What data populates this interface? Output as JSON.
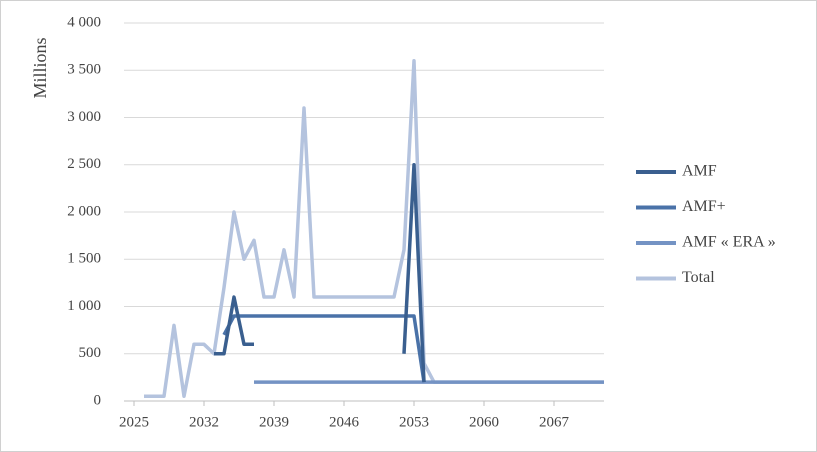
{
  "chart_data": {
    "type": "line",
    "y_label": "Millions",
    "x": [
      2026,
      2027,
      2028,
      2029,
      2030,
      2031,
      2032,
      2033,
      2034,
      2035,
      2036,
      2037,
      2038,
      2039,
      2040,
      2041,
      2042,
      2043,
      2044,
      2045,
      2046,
      2047,
      2048,
      2049,
      2050,
      2051,
      2052,
      2053,
      2054,
      2055,
      2056,
      2057,
      2058,
      2059,
      2060,
      2061,
      2062,
      2063,
      2064,
      2065,
      2066,
      2067,
      2068,
      2069,
      2070,
      2071,
      2072
    ],
    "series": [
      {
        "name": "Total",
        "color": "#b4c3de",
        "values": [
          50,
          50,
          50,
          800,
          50,
          600,
          600,
          500,
          1200,
          2000,
          1500,
          1700,
          1100,
          1100,
          1600,
          1100,
          3100,
          1100,
          1100,
          1100,
          1100,
          1100,
          1100,
          1100,
          1100,
          1100,
          1600,
          3600,
          400,
          200,
          200,
          200,
          200,
          200,
          200,
          200,
          200,
          200,
          200,
          200,
          200,
          200,
          200,
          200,
          200,
          200,
          200
        ]
      },
      {
        "name": "AMF « ERA »",
        "color": "#7493c4",
        "values": [
          null,
          null,
          null,
          null,
          null,
          null,
          null,
          null,
          null,
          null,
          null,
          200,
          200,
          200,
          200,
          200,
          200,
          200,
          200,
          200,
          200,
          200,
          200,
          200,
          200,
          200,
          200,
          200,
          200,
          200,
          200,
          200,
          200,
          200,
          200,
          200,
          200,
          200,
          200,
          200,
          200,
          200,
          200,
          200,
          200,
          200,
          200
        ]
      },
      {
        "name": "AMF+",
        "color": "#4a72a8",
        "values": [
          null,
          null,
          null,
          null,
          null,
          null,
          null,
          null,
          700,
          900,
          900,
          900,
          900,
          900,
          900,
          900,
          900,
          900,
          900,
          900,
          900,
          900,
          900,
          900,
          900,
          900,
          900,
          900,
          200,
          null,
          null,
          null,
          null,
          null,
          null,
          null,
          null,
          null,
          null,
          null,
          null,
          null,
          null,
          null,
          null,
          null,
          null
        ]
      },
      {
        "name": "AMF",
        "color": "#3a5f8f",
        "values": [
          null,
          null,
          null,
          null,
          null,
          null,
          null,
          500,
          500,
          1100,
          600,
          600,
          null,
          null,
          null,
          null,
          null,
          null,
          null,
          null,
          null,
          null,
          null,
          null,
          null,
          null,
          500,
          2500,
          200,
          null,
          null,
          null,
          null,
          null,
          null,
          null,
          null,
          null,
          null,
          null,
          null,
          null,
          null,
          null,
          null,
          null,
          null
        ]
      }
    ],
    "legend_order": [
      3,
      2,
      1,
      0
    ],
    "xlim": [
      2024,
      2072
    ],
    "xticks": [
      2025,
      2032,
      2039,
      2046,
      2053,
      2060,
      2067
    ],
    "ylim": [
      0,
      4000
    ],
    "yticks": [
      0,
      500,
      {
        "value": 1000,
        "label": "1 000"
      },
      {
        "value": 1500,
        "label": "1 500"
      },
      {
        "value": 2000,
        "label": "2 000"
      },
      {
        "value": 2500,
        "label": "2 500"
      },
      {
        "value": 3000,
        "label": "3 000"
      },
      {
        "value": 3500,
        "label": "3 500"
      },
      {
        "value": 4000,
        "label": "4 000"
      }
    ],
    "grid": true
  }
}
